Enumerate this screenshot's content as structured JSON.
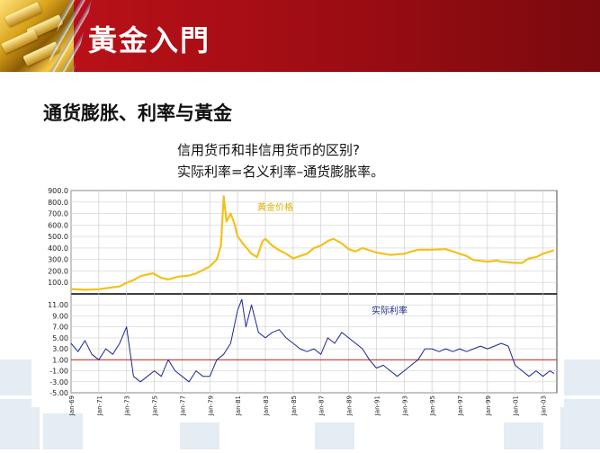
{
  "header": {
    "title": "黃金入門"
  },
  "subtitle": "通货膨胀、利率与黃金",
  "notes": [
    "信用货币和非信用货币的区别?",
    "实际利率=名义利率–通货膨胀率。"
  ],
  "colors": {
    "header_red": "#c0121a",
    "gold_line": "#f2c21b",
    "rate_line": "#1c2a8a",
    "zero_line": "#c0392b"
  },
  "chart_data": [
    {
      "type": "line",
      "series": [
        {
          "name": "黃金价格",
          "color": "#f2c21b"
        }
      ],
      "ylim": [
        0,
        900
      ],
      "yticks": [
        "900.0",
        "800.0",
        "700.0",
        "600.0",
        "500.0",
        "400.0",
        "300.0",
        "200.0",
        "100.0"
      ],
      "ytick_values": [
        900,
        800,
        700,
        600,
        500,
        400,
        300,
        200,
        100
      ],
      "x_range": [
        1969,
        2004
      ],
      "x": [
        1969.0,
        1970.0,
        1971.0,
        1972.0,
        1972.5,
        1973.0,
        1973.5,
        1974.0,
        1974.9,
        1975.5,
        1976.0,
        1976.7,
        1977.5,
        1978.0,
        1978.7,
        1979.0,
        1979.5,
        1979.8,
        1980.0,
        1980.2,
        1980.5,
        1980.8,
        1981.0,
        1981.5,
        1982.0,
        1982.4,
        1982.8,
        1983.0,
        1983.5,
        1984.0,
        1984.5,
        1985.0,
        1985.5,
        1986.0,
        1986.5,
        1987.0,
        1987.5,
        1987.9,
        1988.5,
        1989.0,
        1989.5,
        1990.0,
        1991.0,
        1992.0,
        1993.0,
        1994.0,
        1995.0,
        1996.0,
        1997.0,
        1997.5,
        1998.0,
        1999.0,
        1999.7,
        2000.0,
        2001.0,
        2001.5,
        2002.0,
        2002.5,
        2003.0,
        2003.8
      ],
      "values": [
        42,
        36,
        41,
        58,
        65,
        97,
        120,
        155,
        180,
        140,
        125,
        150,
        160,
        178,
        220,
        240,
        300,
        420,
        850,
        630,
        700,
        600,
        500,
        420,
        350,
        320,
        460,
        480,
        420,
        380,
        350,
        310,
        330,
        350,
        400,
        420,
        460,
        480,
        440,
        390,
        370,
        400,
        360,
        340,
        350,
        385,
        385,
        390,
        350,
        330,
        295,
        280,
        290,
        280,
        270,
        270,
        310,
        320,
        350,
        380
      ]
    },
    {
      "type": "line",
      "series": [
        {
          "name": "实际利率",
          "color": "#1c2a8a"
        }
      ],
      "ylim": [
        -5,
        13
      ],
      "yticks": [
        "11.00",
        "9.00",
        "7.00",
        "5.00",
        "3.00",
        "1.00",
        "-1.00",
        "-3.00",
        "-5.00"
      ],
      "ytick_values": [
        11,
        9,
        7,
        5,
        3,
        1,
        -1,
        -3,
        -5
      ],
      "reference_line": 1,
      "x_range": [
        1969,
        2004
      ],
      "xticks": [
        "Jan-69",
        "Jan-71",
        "Jan-73",
        "Jan-75",
        "Jan-77",
        "Jan-79",
        "Jan-81",
        "Jan-83",
        "Jan-85",
        "Jan-87",
        "Jan-89",
        "Jan-91",
        "Jan-93",
        "Jan-95",
        "Jan-97",
        "Jan-99",
        "Jan-01",
        "Jan-03"
      ],
      "xtick_values": [
        1969,
        1971,
        1973,
        1975,
        1977,
        1979,
        1981,
        1983,
        1985,
        1987,
        1989,
        1991,
        1993,
        1995,
        1997,
        1999,
        2001,
        2003
      ],
      "x": [
        1969.0,
        1969.5,
        1970.0,
        1970.5,
        1971.0,
        1971.5,
        1972.0,
        1972.5,
        1973.0,
        1973.5,
        1974.0,
        1974.5,
        1975.0,
        1975.5,
        1976.0,
        1976.5,
        1977.0,
        1977.5,
        1978.0,
        1978.5,
        1979.0,
        1979.5,
        1980.0,
        1980.5,
        1981.0,
        1981.3,
        1981.6,
        1982.0,
        1982.5,
        1983.0,
        1983.5,
        1984.0,
        1984.5,
        1985.0,
        1985.5,
        1986.0,
        1986.5,
        1987.0,
        1987.5,
        1988.0,
        1988.5,
        1989.0,
        1989.5,
        1990.0,
        1990.5,
        1991.0,
        1991.5,
        1992.0,
        1992.5,
        1993.0,
        1993.5,
        1994.0,
        1994.5,
        1995.0,
        1995.5,
        1996.0,
        1996.5,
        1997.0,
        1997.5,
        1998.0,
        1998.5,
        1999.0,
        1999.5,
        2000.0,
        2000.5,
        2001.0,
        2001.5,
        2002.0,
        2002.5,
        2003.0,
        2003.5,
        2003.8
      ],
      "values": [
        4,
        2.5,
        4.5,
        2,
        1,
        3,
        2,
        4,
        7,
        -2,
        -3,
        -2,
        -1,
        -2,
        1,
        -1,
        -2,
        -3,
        -1,
        -2,
        -2,
        1,
        2,
        4,
        10,
        12,
        7,
        11,
        6,
        5,
        6,
        6.5,
        5,
        4,
        3,
        2.5,
        3,
        2,
        5,
        4,
        6,
        5,
        4,
        3,
        1,
        -0.5,
        0,
        -1,
        -2,
        -1,
        0,
        1,
        3,
        3,
        2.5,
        3,
        2.5,
        3,
        2.5,
        3,
        3.5,
        3,
        3.5,
        4,
        3.5,
        0,
        -1,
        -2,
        -1,
        -2,
        -1,
        -1.5
      ]
    }
  ]
}
